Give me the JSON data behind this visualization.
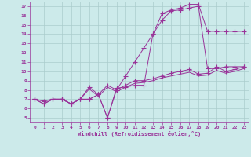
{
  "xlabel": "Windchill (Refroidissement éolien,°C)",
  "background_color": "#cceaea",
  "line_color": "#993399",
  "grid_color": "#aacccc",
  "xlim": [
    -0.5,
    23.5
  ],
  "ylim": [
    4.5,
    17.5
  ],
  "x_ticks": [
    0,
    1,
    2,
    3,
    4,
    5,
    6,
    7,
    8,
    9,
    10,
    11,
    12,
    13,
    14,
    15,
    16,
    17,
    18,
    19,
    20,
    21,
    22,
    23
  ],
  "y_ticks": [
    5,
    6,
    7,
    8,
    9,
    10,
    11,
    12,
    13,
    14,
    15,
    16,
    17
  ],
  "series": [
    {
      "x": [
        0,
        1,
        2,
        3,
        4,
        5,
        6,
        7,
        8,
        9,
        10,
        11,
        12,
        13,
        14,
        15,
        16,
        17,
        18,
        19,
        20,
        21,
        22,
        23
      ],
      "y": [
        7.0,
        6.5,
        7.0,
        7.0,
        6.5,
        7.0,
        7.0,
        7.5,
        5.0,
        8.2,
        8.3,
        8.5,
        8.5,
        14.0,
        16.2,
        16.6,
        16.8,
        17.2,
        17.2,
        14.3,
        14.3,
        14.3,
        14.3,
        14.3
      ],
      "marker": "+",
      "markersize": 4
    },
    {
      "x": [
        0,
        1,
        2,
        3,
        4,
        5,
        6,
        7,
        8,
        9,
        10,
        11,
        12,
        13,
        14,
        15,
        16,
        17,
        18,
        19,
        20,
        21,
        22,
        23
      ],
      "y": [
        7.0,
        6.5,
        7.0,
        7.0,
        6.5,
        7.0,
        7.0,
        7.5,
        5.0,
        8.0,
        9.5,
        11.0,
        12.5,
        14.0,
        15.5,
        16.5,
        16.6,
        16.8,
        17.0,
        10.3,
        10.3,
        10.5,
        10.5,
        10.5
      ],
      "marker": "+",
      "markersize": 4
    },
    {
      "x": [
        0,
        1,
        2,
        3,
        4,
        5,
        6,
        7,
        8,
        9,
        10,
        11,
        12,
        13,
        14,
        15,
        16,
        17,
        18,
        19,
        20,
        21,
        22,
        23
      ],
      "y": [
        7.0,
        6.8,
        7.0,
        7.0,
        6.5,
        7.0,
        8.3,
        7.5,
        8.5,
        8.0,
        8.5,
        9.0,
        9.0,
        9.2,
        9.5,
        9.8,
        10.0,
        10.2,
        9.7,
        9.8,
        10.5,
        10.0,
        10.2,
        10.5
      ],
      "marker": "+",
      "markersize": 4
    },
    {
      "x": [
        0,
        1,
        2,
        3,
        4,
        5,
        6,
        7,
        8,
        9,
        10,
        11,
        12,
        13,
        14,
        15,
        16,
        17,
        18,
        19,
        20,
        21,
        22,
        23
      ],
      "y": [
        7.0,
        6.8,
        7.0,
        7.0,
        6.5,
        7.0,
        8.1,
        7.3,
        8.3,
        7.8,
        8.3,
        8.7,
        8.8,
        9.0,
        9.3,
        9.5,
        9.7,
        9.9,
        9.5,
        9.6,
        10.1,
        9.8,
        10.0,
        10.3
      ],
      "marker": null,
      "markersize": 0
    }
  ]
}
